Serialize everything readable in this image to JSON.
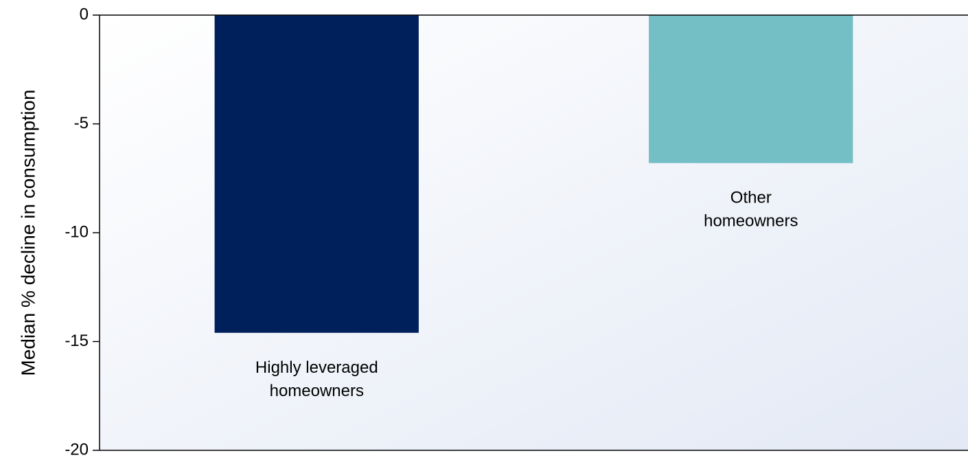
{
  "chart_data": {
    "type": "bar",
    "title": "",
    "xlabel": "",
    "ylabel": "Median % decline in consumption",
    "categories": [
      "Highly leveraged homeowners",
      "Other homeowners"
    ],
    "category_label_lines": [
      [
        "Highly leveraged",
        "homeowners"
      ],
      [
        "Other",
        "homeowners"
      ]
    ],
    "values": [
      -14.6,
      -6.8
    ],
    "ylim": [
      -20,
      0
    ],
    "yticks": [
      0,
      -5,
      -10,
      -15,
      -20
    ],
    "ytick_labels": [
      "0",
      "-5",
      "-10",
      "-15",
      "-20"
    ],
    "grid": false,
    "legend": "none",
    "colors": {
      "bars": [
        "#00205b",
        "#73bfc5"
      ],
      "plot_background_start": "#ffffff",
      "plot_background_end": "#e3e9f5",
      "axis": "#000000"
    }
  }
}
